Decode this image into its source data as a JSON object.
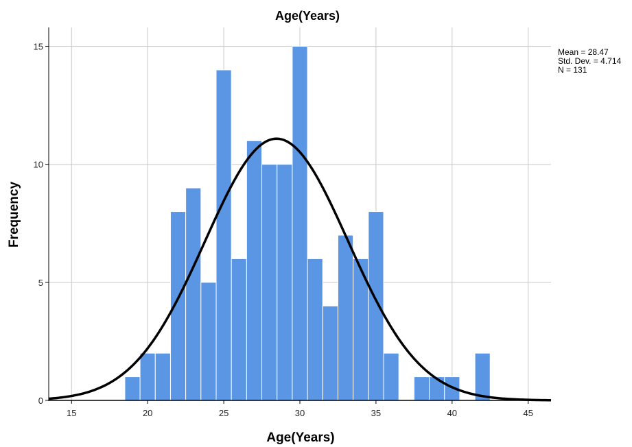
{
  "chart_data": {
    "type": "bar",
    "title": "Age(Years)",
    "xlabel": "Age(Years)",
    "ylabel": "Frequency",
    "xlim": [
      13.5,
      46.5
    ],
    "ylim": [
      0,
      15.8
    ],
    "xticks": [
      15,
      20,
      25,
      30,
      35,
      40,
      45
    ],
    "yticks": [
      0,
      5,
      10,
      15
    ],
    "grid": true,
    "bar_color": "#5a96e3",
    "bar_edge_color": "#ffffff",
    "curve_color": "#000000",
    "bin_width": 1,
    "bins": [
      {
        "x": 19,
        "value": 1
      },
      {
        "x": 20,
        "value": 2
      },
      {
        "x": 21,
        "value": 2
      },
      {
        "x": 22,
        "value": 8
      },
      {
        "x": 23,
        "value": 9
      },
      {
        "x": 24,
        "value": 5
      },
      {
        "x": 25,
        "value": 14
      },
      {
        "x": 26,
        "value": 6
      },
      {
        "x": 27,
        "value": 11
      },
      {
        "x": 28,
        "value": 10
      },
      {
        "x": 29,
        "value": 10
      },
      {
        "x": 30,
        "value": 15
      },
      {
        "x": 31,
        "value": 6
      },
      {
        "x": 32,
        "value": 4
      },
      {
        "x": 33,
        "value": 7
      },
      {
        "x": 34,
        "value": 6
      },
      {
        "x": 35,
        "value": 8
      },
      {
        "x": 36,
        "value": 2
      },
      {
        "x": 38,
        "value": 1
      },
      {
        "x": 39,
        "value": 1
      },
      {
        "x": 40,
        "value": 1
      },
      {
        "x": 42,
        "value": 2
      }
    ],
    "normal_curve": {
      "mean": 28.47,
      "std_dev": 4.714,
      "n": 131
    },
    "stats_legend": [
      "Mean = 28.47",
      "Std. Dev. = 4.714",
      "N = 131"
    ]
  }
}
